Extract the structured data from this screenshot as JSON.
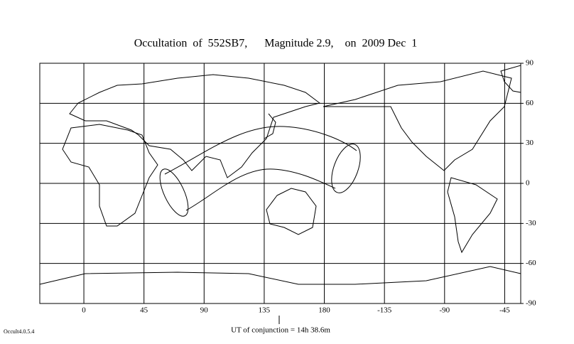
{
  "chart_data": {
    "type": "map",
    "title": "Occultation  of  552SB7,      Magnitude 2.9,    on  2009 Dec  1",
    "xlabel": "UT of conjunction = 14h 38.6m",
    "footer": "Occult4.0.5.4",
    "xlim": [
      -33,
      327
    ],
    "ylim": [
      -90,
      90
    ],
    "xticks": [
      0,
      45,
      90,
      135,
      180,
      {
        "value": 225,
        "label": "-135"
      },
      {
        "value": 270,
        "label": "-90"
      },
      {
        "value": 315,
        "label": "-45"
      }
    ],
    "yticks": [
      90,
      60,
      30,
      0,
      -30,
      -60,
      -90
    ],
    "grid": true
  }
}
